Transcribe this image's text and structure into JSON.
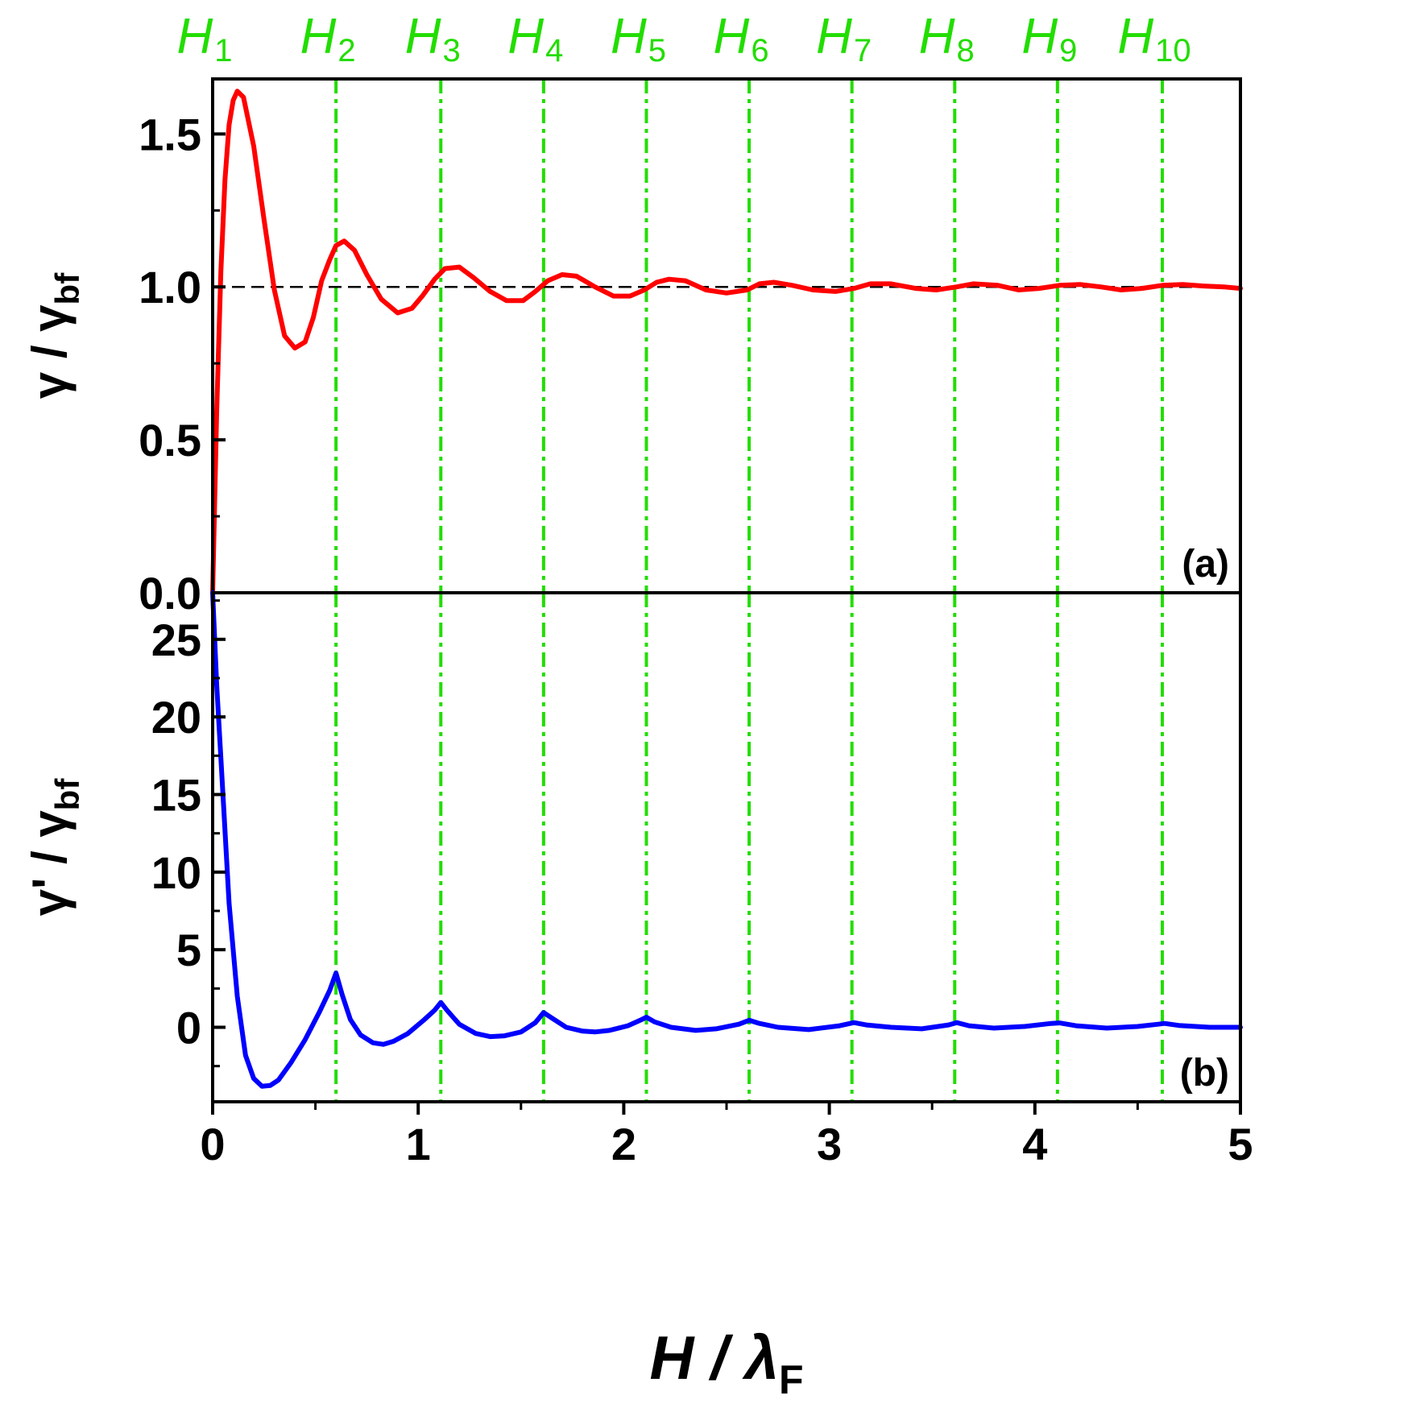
{
  "chart_data": [
    {
      "type": "line",
      "panel_label": "(a)",
      "ylabel": {
        "main": "γ / γ",
        "sub": "bf"
      },
      "xlim": [
        0,
        5
      ],
      "ylim": [
        0,
        1.68
      ],
      "yticks": [
        {
          "value": 0.0,
          "label": "0.0"
        },
        {
          "value": 0.5,
          "label": "0.5"
        },
        {
          "value": 1.0,
          "label": "1.0"
        },
        {
          "value": 1.5,
          "label": "1.5"
        }
      ],
      "reference_line": {
        "y": 1.0,
        "style": "dashed",
        "color": "#000000"
      },
      "series": [
        {
          "name": "γ/γbf",
          "color": "#ff0000",
          "x": [
            0,
            0.02,
            0.04,
            0.06,
            0.08,
            0.1,
            0.12,
            0.15,
            0.2,
            0.25,
            0.3,
            0.35,
            0.4,
            0.45,
            0.49,
            0.53,
            0.57,
            0.6,
            0.64,
            0.69,
            0.75,
            0.82,
            0.9,
            0.97,
            1.02,
            1.08,
            1.13,
            1.2,
            1.27,
            1.35,
            1.43,
            1.51,
            1.57,
            1.63,
            1.7,
            1.77,
            1.86,
            1.95,
            2.03,
            2.1,
            2.16,
            2.22,
            2.3,
            2.4,
            2.5,
            2.6,
            2.66,
            2.73,
            2.82,
            2.92,
            3.03,
            3.12,
            3.2,
            3.3,
            3.42,
            3.52,
            3.62,
            3.7,
            3.82,
            3.92,
            4.02,
            4.12,
            4.22,
            4.32,
            4.42,
            4.52,
            4.62,
            4.72,
            4.82,
            4.92,
            5.0
          ],
          "y": [
            0.0,
            0.6,
            1.05,
            1.35,
            1.53,
            1.61,
            1.64,
            1.62,
            1.46,
            1.22,
            0.99,
            0.84,
            0.8,
            0.82,
            0.9,
            1.02,
            1.09,
            1.135,
            1.15,
            1.12,
            1.04,
            0.96,
            0.915,
            0.93,
            0.97,
            1.025,
            1.06,
            1.065,
            1.03,
            0.985,
            0.955,
            0.955,
            0.985,
            1.02,
            1.04,
            1.035,
            1.0,
            0.97,
            0.97,
            0.99,
            1.015,
            1.025,
            1.02,
            0.99,
            0.98,
            0.99,
            1.01,
            1.015,
            1.005,
            0.99,
            0.985,
            0.995,
            1.01,
            1.01,
            0.995,
            0.99,
            1.0,
            1.01,
            1.005,
            0.99,
            0.995,
            1.005,
            1.008,
            1.0,
            0.99,
            0.995,
            1.005,
            1.008,
            1.003,
            1.0,
            0.995
          ]
        }
      ]
    },
    {
      "type": "line",
      "panel_label": "(b)",
      "ylabel": {
        "main": "γ' / γ",
        "sub": "bf"
      },
      "xlabel": {
        "main": "H / λ",
        "sub": "F"
      },
      "xlim": [
        0,
        5
      ],
      "ylim": [
        -4.8,
        28
      ],
      "xticks": [
        {
          "value": 0,
          "label": "0"
        },
        {
          "value": 1,
          "label": "1"
        },
        {
          "value": 2,
          "label": "2"
        },
        {
          "value": 3,
          "label": "3"
        },
        {
          "value": 4,
          "label": "4"
        },
        {
          "value": 5,
          "label": "5"
        }
      ],
      "yticks": [
        {
          "value": 0,
          "label": "0"
        },
        {
          "value": 5,
          "label": "5"
        },
        {
          "value": 10,
          "label": "10"
        },
        {
          "value": 15,
          "label": "15"
        },
        {
          "value": 20,
          "label": "20"
        },
        {
          "value": 25,
          "label": "25"
        }
      ],
      "series": [
        {
          "name": "γ'/γbf",
          "color": "#0000ff",
          "x": [
            0,
            0.02,
            0.05,
            0.08,
            0.12,
            0.16,
            0.2,
            0.24,
            0.28,
            0.32,
            0.38,
            0.45,
            0.52,
            0.57,
            0.6,
            0.63,
            0.67,
            0.72,
            0.78,
            0.83,
            0.88,
            0.95,
            1.03,
            1.08,
            1.11,
            1.14,
            1.2,
            1.28,
            1.35,
            1.42,
            1.5,
            1.57,
            1.61,
            1.65,
            1.72,
            1.8,
            1.86,
            1.93,
            2.02,
            2.08,
            2.11,
            2.15,
            2.23,
            2.35,
            2.45,
            2.56,
            2.61,
            2.66,
            2.75,
            2.9,
            3.05,
            3.12,
            3.18,
            3.3,
            3.45,
            3.58,
            3.62,
            3.68,
            3.8,
            3.95,
            4.08,
            4.12,
            4.2,
            4.35,
            4.5,
            4.6,
            4.63,
            4.7,
            4.85,
            5.0
          ],
          "y": [
            28,
            22,
            15,
            8,
            2,
            -1.8,
            -3.3,
            -3.8,
            -3.75,
            -3.4,
            -2.3,
            -0.8,
            1.0,
            2.4,
            3.5,
            2.1,
            0.5,
            -0.5,
            -1.0,
            -1.1,
            -0.9,
            -0.4,
            0.5,
            1.1,
            1.6,
            1.1,
            0.2,
            -0.4,
            -0.6,
            -0.55,
            -0.3,
            0.3,
            0.95,
            0.6,
            0.0,
            -0.25,
            -0.3,
            -0.2,
            0.1,
            0.45,
            0.65,
            0.35,
            0.0,
            -0.2,
            -0.1,
            0.2,
            0.45,
            0.25,
            0.0,
            -0.15,
            0.1,
            0.3,
            0.15,
            0.0,
            -0.1,
            0.15,
            0.3,
            0.1,
            -0.05,
            0.05,
            0.25,
            0.28,
            0.1,
            -0.05,
            0.05,
            0.2,
            0.25,
            0.12,
            0.0,
            0.0
          ]
        }
      ]
    }
  ],
  "harmonic_markers": {
    "color": "#22dd00",
    "letter": "H",
    "items": [
      {
        "x": 0.0,
        "sub": "1"
      },
      {
        "x": 0.6,
        "sub": "2"
      },
      {
        "x": 1.11,
        "sub": "3"
      },
      {
        "x": 1.61,
        "sub": "4"
      },
      {
        "x": 2.11,
        "sub": "5"
      },
      {
        "x": 2.61,
        "sub": "6"
      },
      {
        "x": 3.11,
        "sub": "7"
      },
      {
        "x": 3.61,
        "sub": "8"
      },
      {
        "x": 4.11,
        "sub": "9"
      },
      {
        "x": 4.62,
        "sub": "10"
      }
    ]
  }
}
